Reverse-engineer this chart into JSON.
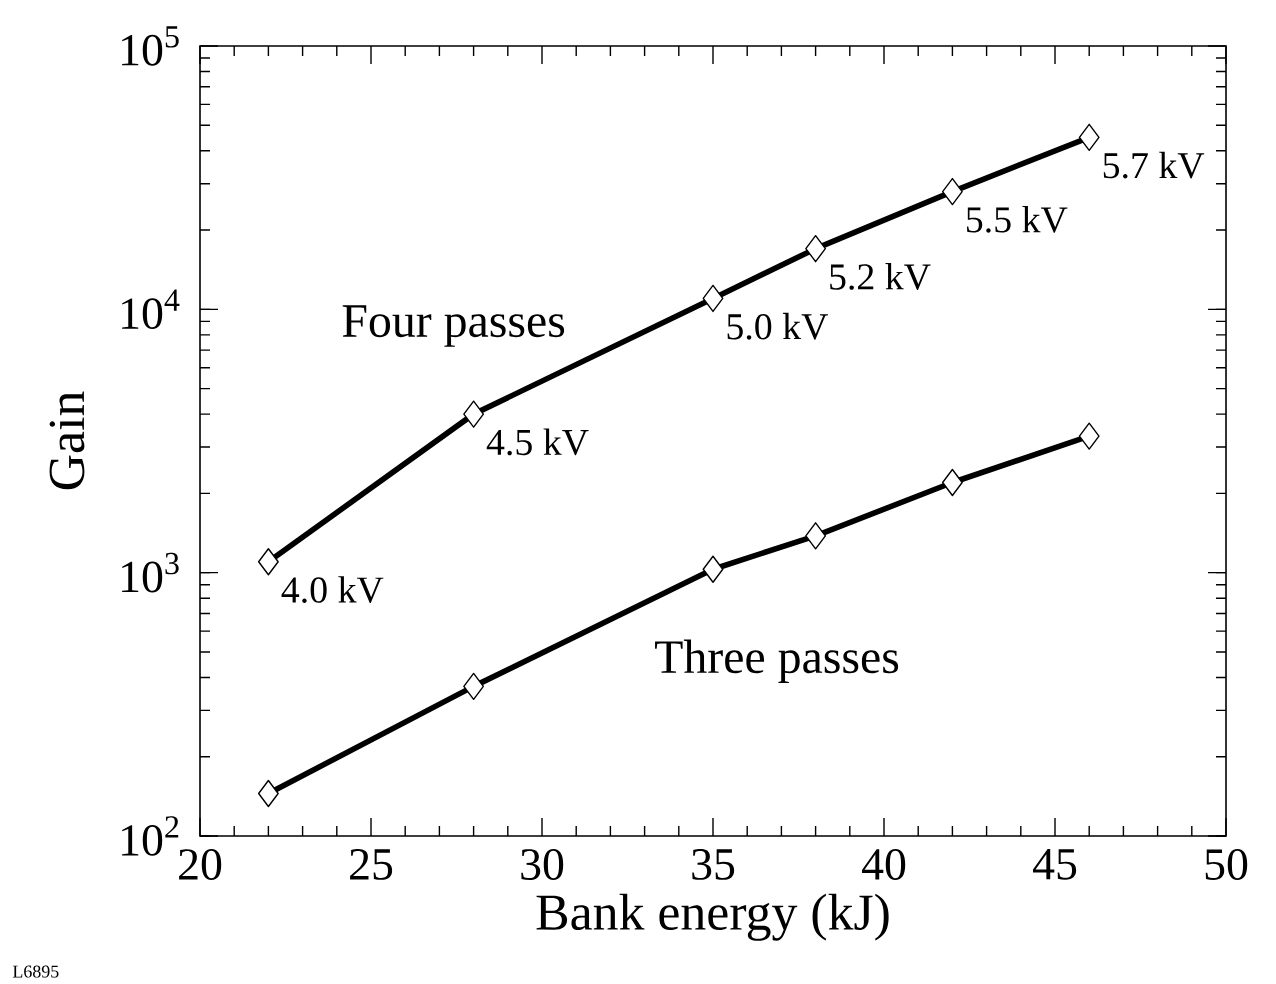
{
  "chart_data": {
    "type": "line",
    "xlabel": "Bank energy (kJ)",
    "ylabel": "Gain",
    "log": "y",
    "grid": false,
    "legend": false,
    "marker": "diamond",
    "line_style": "solid",
    "x": [
      22,
      28,
      35,
      38,
      42,
      46
    ],
    "xlim": [
      20,
      50
    ],
    "xticks": [
      20,
      25,
      30,
      35,
      40,
      45,
      50
    ],
    "ylim": [
      100,
      100000
    ],
    "yticks": [
      {
        "value": 100,
        "label": "10$^{2}$"
      },
      {
        "value": 1000,
        "label": "10$^{3}$"
      },
      {
        "value": 10000,
        "label": "10$^{4}$"
      },
      {
        "value": 100000,
        "label": "10$^{5}$"
      }
    ],
    "series": [
      {
        "name": "Four passes",
        "color": "#000000",
        "values": [
          1100,
          4000,
          11000,
          17000,
          28000,
          45000
        ]
      },
      {
        "name": "Three passes",
        "color": "#000000",
        "values": [
          145,
          370,
          1030,
          1380,
          2200,
          3300
        ]
      }
    ],
    "annotations": [
      {
        "text": "4.0 kV",
        "x": 22,
        "y": 1100
      },
      {
        "text": "4.5 kV",
        "x": 28,
        "y": 4000
      },
      {
        "text": "5.0 kV",
        "x": 35,
        "y": 11000
      },
      {
        "text": "5.2 kV",
        "x": 38,
        "y": 17000
      },
      {
        "text": "5.5 kV",
        "x": 42,
        "y": 28000
      },
      {
        "text": "5.7 kV",
        "x": 46,
        "y": 45000
      },
      "L6895"
    ]
  }
}
